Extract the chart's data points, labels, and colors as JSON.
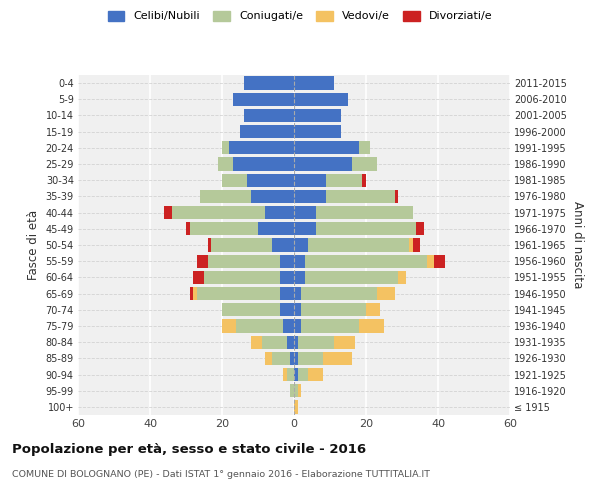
{
  "age_groups": [
    "100+",
    "95-99",
    "90-94",
    "85-89",
    "80-84",
    "75-79",
    "70-74",
    "65-69",
    "60-64",
    "55-59",
    "50-54",
    "45-49",
    "40-44",
    "35-39",
    "30-34",
    "25-29",
    "20-24",
    "15-19",
    "10-14",
    "5-9",
    "0-4"
  ],
  "birth_years": [
    "≤ 1915",
    "1916-1920",
    "1921-1925",
    "1926-1930",
    "1931-1935",
    "1936-1940",
    "1941-1945",
    "1946-1950",
    "1951-1955",
    "1956-1960",
    "1961-1965",
    "1966-1970",
    "1971-1975",
    "1976-1980",
    "1981-1985",
    "1986-1990",
    "1991-1995",
    "1996-2000",
    "2001-2005",
    "2006-2010",
    "2011-2015"
  ],
  "males": {
    "celibe": [
      0,
      0,
      0,
      1,
      2,
      3,
      4,
      4,
      4,
      4,
      6,
      10,
      8,
      12,
      13,
      17,
      18,
      15,
      14,
      17,
      14
    ],
    "coniugato": [
      0,
      1,
      2,
      5,
      7,
      13,
      16,
      23,
      21,
      20,
      17,
      19,
      26,
      14,
      7,
      4,
      2,
      0,
      0,
      0,
      0
    ],
    "vedovo": [
      0,
      0,
      1,
      2,
      3,
      4,
      0,
      1,
      0,
      0,
      0,
      0,
      0,
      0,
      0,
      0,
      0,
      0,
      0,
      0,
      0
    ],
    "divorziato": [
      0,
      0,
      0,
      0,
      0,
      0,
      0,
      1,
      3,
      3,
      1,
      1,
      2,
      0,
      0,
      0,
      0,
      0,
      0,
      0,
      0
    ]
  },
  "females": {
    "nubile": [
      0,
      0,
      1,
      1,
      1,
      2,
      2,
      2,
      3,
      3,
      4,
      6,
      6,
      9,
      9,
      16,
      18,
      13,
      13,
      15,
      11
    ],
    "coniugata": [
      0,
      1,
      3,
      7,
      10,
      16,
      18,
      21,
      26,
      34,
      28,
      28,
      27,
      19,
      10,
      7,
      3,
      0,
      0,
      0,
      0
    ],
    "vedova": [
      1,
      1,
      4,
      8,
      6,
      7,
      4,
      5,
      2,
      2,
      1,
      0,
      0,
      0,
      0,
      0,
      0,
      0,
      0,
      0,
      0
    ],
    "divorziata": [
      0,
      0,
      0,
      0,
      0,
      0,
      0,
      0,
      0,
      3,
      2,
      2,
      0,
      1,
      1,
      0,
      0,
      0,
      0,
      0,
      0
    ]
  },
  "colors": {
    "celibe": "#4472c4",
    "coniugato": "#b5c99a",
    "vedovo": "#f4c262",
    "divorziato": "#cc2222"
  },
  "title": "Popolazione per età, sesso e stato civile - 2016",
  "subtitle": "COMUNE DI BOLOGNANO (PE) - Dati ISTAT 1° gennaio 2016 - Elaborazione TUTTITALIA.IT",
  "ylabel": "Fasce di età",
  "ylabel_right": "Anni di nascita",
  "xlim": 60,
  "legend_labels": [
    "Celibi/Nubili",
    "Coniugati/e",
    "Vedovi/e",
    "Divorziati/e"
  ],
  "bg_color": "#f0f0f0"
}
